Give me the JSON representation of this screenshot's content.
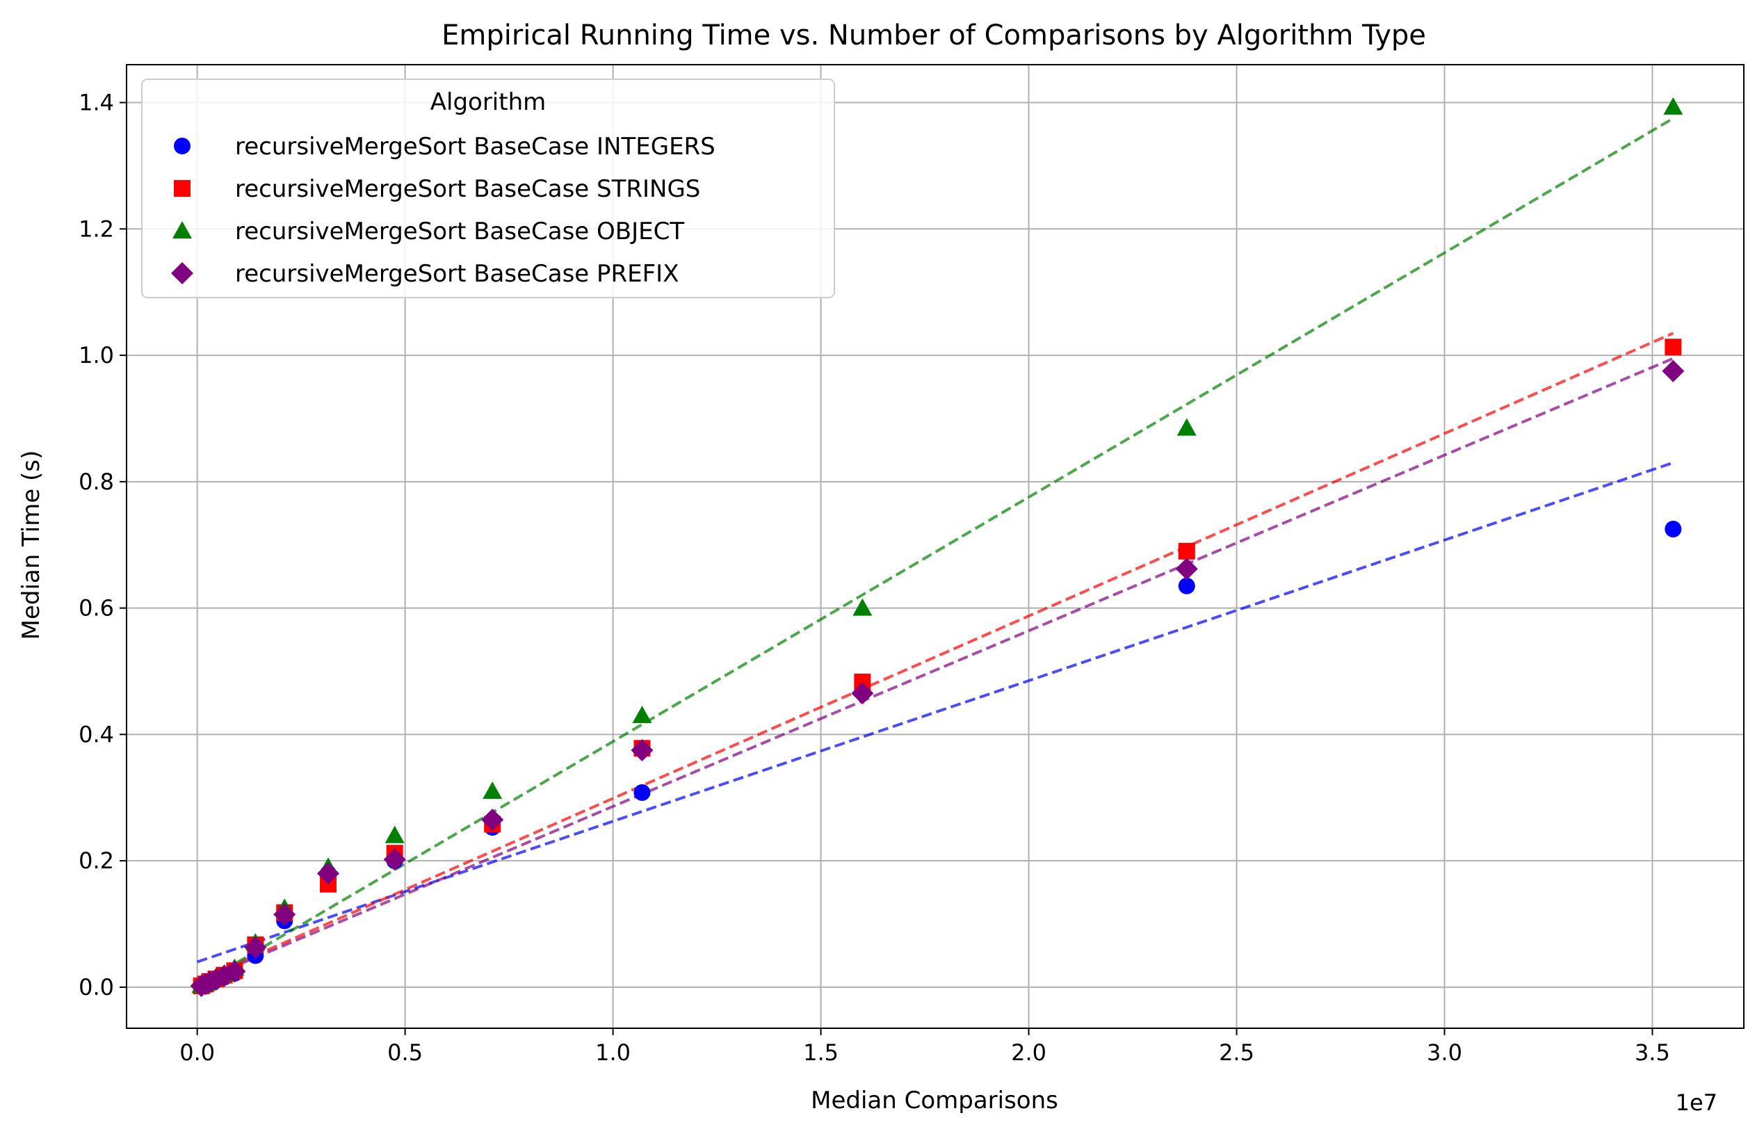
{
  "chart_data": {
    "type": "scatter",
    "title": "Empirical Running Time vs. Number of Comparisons by Algorithm Type",
    "xlabel": "Median Comparisons",
    "ylabel": "Median Time (s)",
    "x_offset_label": "1e7",
    "xlim": [
      -1700000,
      37200000
    ],
    "ylim": [
      -0.065,
      1.46
    ],
    "x_ticks": [
      0,
      5000000,
      10000000,
      15000000,
      20000000,
      25000000,
      30000000,
      35000000
    ],
    "x_tick_labels": [
      "0.0",
      "0.5",
      "1.0",
      "1.5",
      "2.0",
      "2.5",
      "3.0",
      "3.5"
    ],
    "y_ticks": [
      0.0,
      0.2,
      0.4,
      0.6,
      0.8,
      1.0,
      1.2,
      1.4
    ],
    "y_tick_labels": [
      "0.0",
      "0.2",
      "0.4",
      "0.6",
      "0.8",
      "1.0",
      "1.2",
      "1.4"
    ],
    "grid": true,
    "legend": {
      "title": "Algorithm",
      "placement": "upper-left"
    },
    "series": [
      {
        "name": "recursiveMergeSort BaseCase INTEGERS",
        "marker": "circle",
        "color": "#0000ff",
        "x": [
          100000,
          200000,
          300000,
          450000,
          650000,
          900000,
          1400000,
          2100000,
          3150000,
          4750000,
          7100000,
          10700000,
          16000000,
          23800000,
          35500000
        ],
        "y": [
          0.002,
          0.004,
          0.007,
          0.011,
          0.016,
          0.022,
          0.05,
          0.105,
          0.18,
          0.2,
          0.253,
          0.308,
          0.468,
          0.635,
          0.725
        ],
        "fit": {
          "x": [
            0,
            35500000
          ],
          "y": [
            0.04,
            0.83
          ]
        }
      },
      {
        "name": "recursiveMergeSort BaseCase STRINGS",
        "marker": "square",
        "color": "#ff0000",
        "x": [
          100000,
          200000,
          300000,
          450000,
          650000,
          900000,
          1400000,
          2100000,
          3150000,
          4750000,
          7100000,
          10700000,
          16000000,
          23800000,
          35500000
        ],
        "y": [
          0.002,
          0.005,
          0.009,
          0.013,
          0.019,
          0.026,
          0.067,
          0.118,
          0.163,
          0.212,
          0.258,
          0.378,
          0.483,
          0.69,
          1.013
        ],
        "fit": {
          "x": [
            0,
            35500000
          ],
          "y": [
            0.01,
            1.035
          ]
        }
      },
      {
        "name": "recursiveMergeSort BaseCase OBJECT",
        "marker": "triangle",
        "color": "#008000",
        "x": [
          100000,
          200000,
          300000,
          450000,
          650000,
          900000,
          1400000,
          2100000,
          3150000,
          4750000,
          7100000,
          10700000,
          16000000,
          23800000,
          35500000
        ],
        "y": [
          0.003,
          0.006,
          0.01,
          0.015,
          0.021,
          0.03,
          0.07,
          0.125,
          0.19,
          0.24,
          0.31,
          0.43,
          0.6,
          0.885,
          1.393
        ],
        "fit": {
          "x": [
            0,
            35500000
          ],
          "y": [
            0.002,
            1.375
          ]
        }
      },
      {
        "name": "recursiveMergeSort BaseCase PREFIX",
        "marker": "diamond",
        "color": "#800080",
        "x": [
          100000,
          200000,
          300000,
          450000,
          650000,
          900000,
          1400000,
          2100000,
          3150000,
          4750000,
          7100000,
          10700000,
          16000000,
          23800000,
          35500000
        ],
        "y": [
          0.002,
          0.005,
          0.008,
          0.012,
          0.018,
          0.025,
          0.063,
          0.115,
          0.18,
          0.202,
          0.265,
          0.375,
          0.465,
          0.662,
          0.975
        ],
        "fit": {
          "x": [
            0,
            35500000
          ],
          "y": [
            0.008,
            0.995
          ]
        }
      }
    ]
  }
}
